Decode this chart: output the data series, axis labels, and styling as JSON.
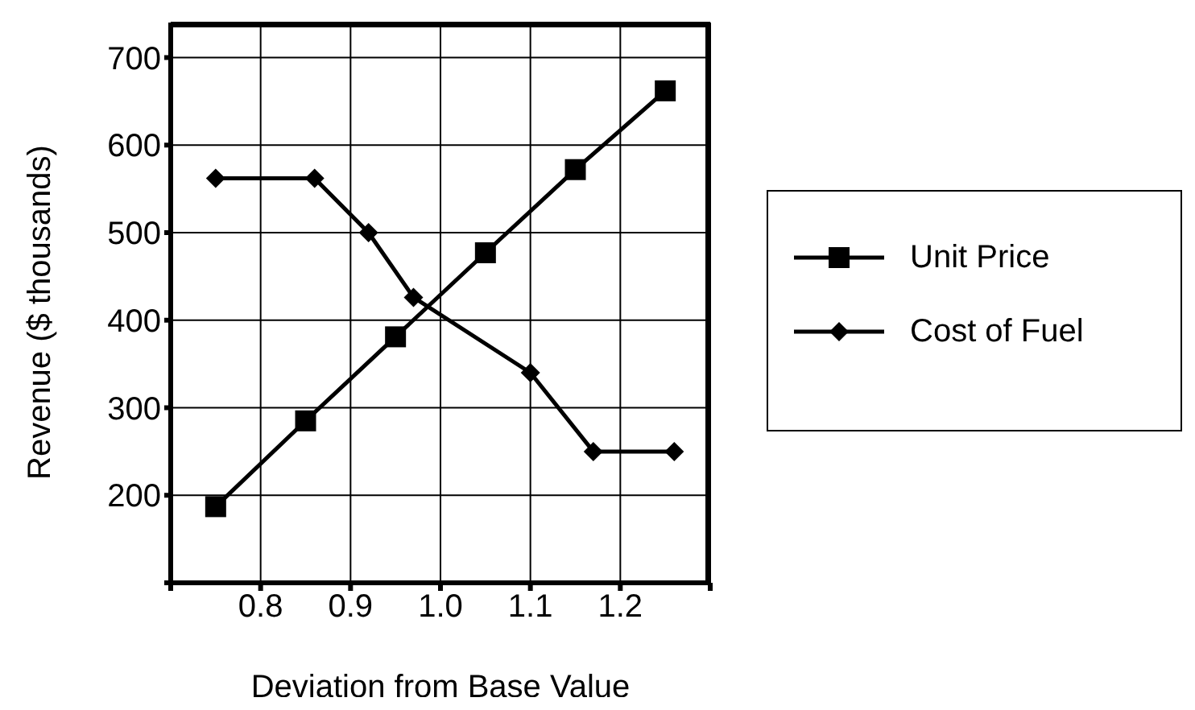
{
  "chart_data": {
    "type": "line",
    "xlabel": "Deviation from Base Value",
    "ylabel": "Revenue    ($ thousands)",
    "xlim": [
      0.7,
      1.3
    ],
    "xticks": [
      {
        "value": 0.7,
        "label": null
      },
      {
        "value": 0.8,
        "label": "0.8"
      },
      {
        "value": 0.9,
        "label": "0.9"
      },
      {
        "value": 1.0,
        "label": "1.0"
      },
      {
        "value": 1.1,
        "label": "1.1"
      },
      {
        "value": 1.2,
        "label": "1.2"
      },
      {
        "value": 1.3,
        "label": null
      }
    ],
    "ylim": [
      100,
      740
    ],
    "yticks": [
      {
        "value": 100,
        "label": null
      },
      200,
      300,
      400,
      500,
      600,
      700
    ],
    "grid": true,
    "legend": "right",
    "line_style": "solid",
    "series": [
      {
        "name": "Unit Price",
        "color": "#000000",
        "marker": "square",
        "x": [
          0.75,
          0.85,
          0.95,
          1.05,
          1.15,
          1.25
        ],
        "values": [
          187,
          285,
          381,
          477,
          572,
          662
        ]
      },
      {
        "name": "Cost of Fuel",
        "color": "#000000",
        "marker": "diamond",
        "x": [
          0.75,
          0.86,
          0.92,
          0.97,
          1.1,
          1.17,
          1.26
        ],
        "values": [
          562,
          562,
          500,
          426,
          340,
          250,
          250
        ]
      }
    ]
  }
}
